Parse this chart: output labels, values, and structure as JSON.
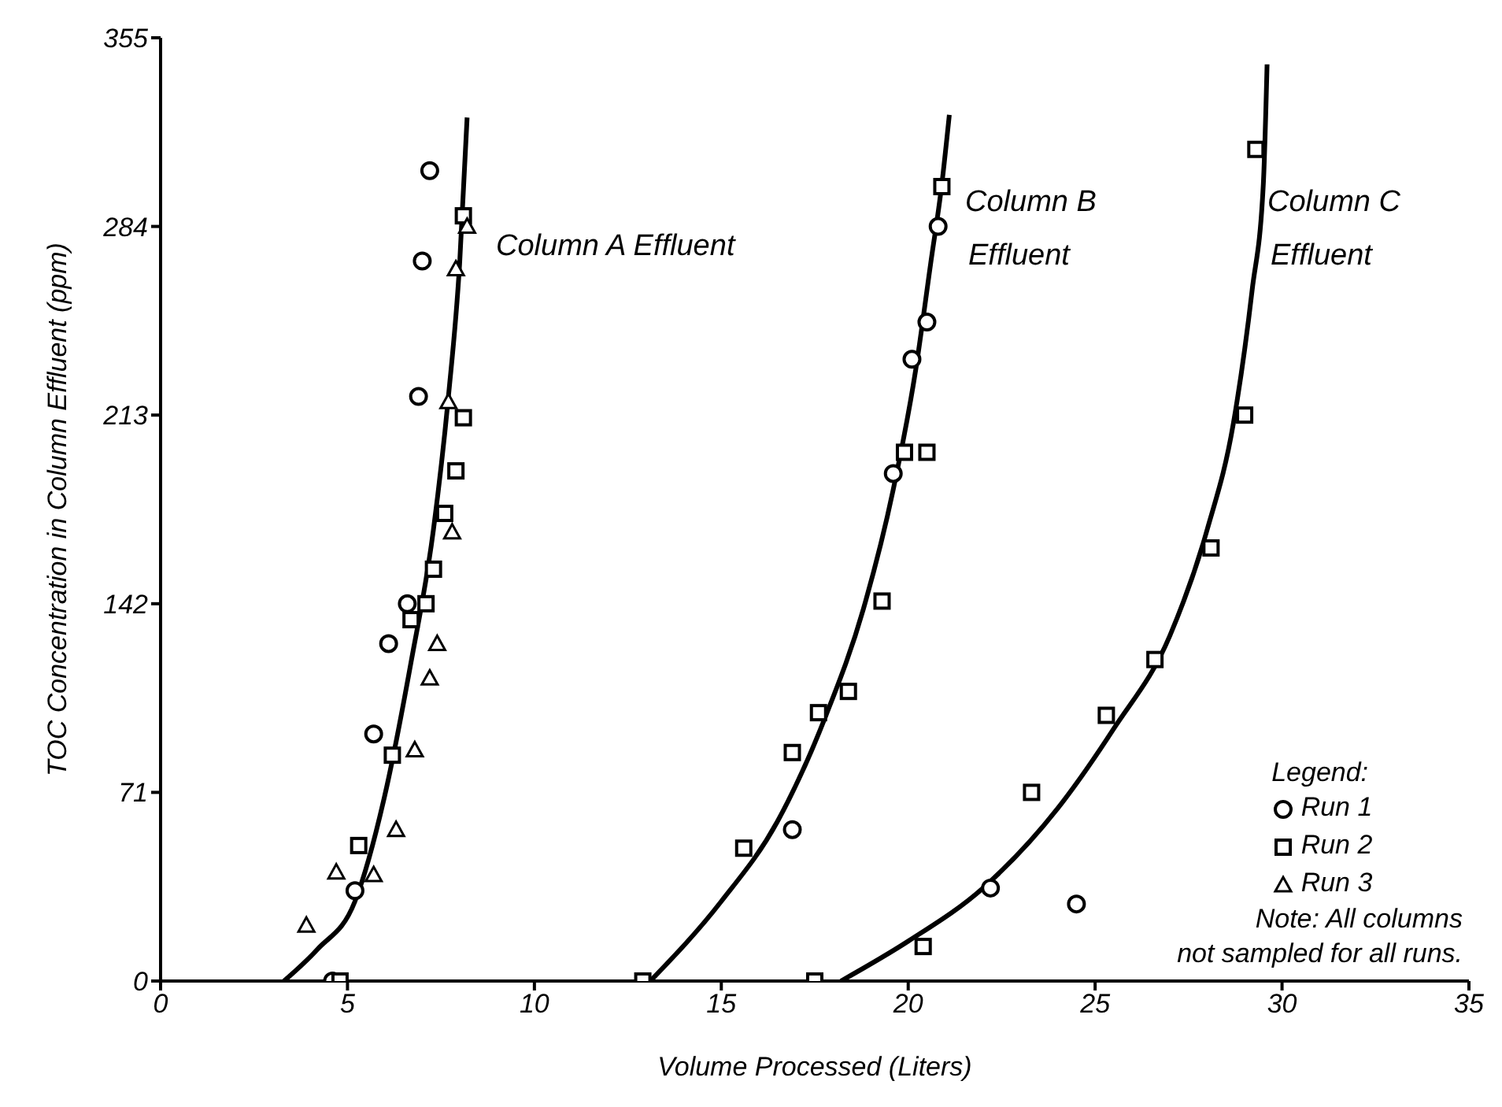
{
  "chart_data": {
    "type": "scatter",
    "xlabel": "Volume Processed (Liters)",
    "ylabel": "TOC Concentration in Column Effluent (ppm)",
    "legend_title": "Legend:",
    "legend": "bottom right",
    "grid": false,
    "xlim": [
      0,
      35
    ],
    "xticks": [
      0,
      5,
      10,
      15,
      20,
      25,
      30,
      35
    ],
    "ylim": [
      0,
      355
    ],
    "yticks": [
      0,
      71,
      142,
      213,
      284,
      355
    ],
    "series": [
      {
        "name": "Run 1",
        "marker": "circle",
        "color": "#000000",
        "x": [
          7.2,
          7.0,
          6.9,
          6.6,
          6.1,
          5.7,
          5.2,
          4.6,
          20.8,
          20.5,
          20.1,
          19.6,
          16.9,
          22.2,
          24.5
        ],
        "values": [
          305,
          271,
          220,
          142,
          127,
          93,
          34,
          0,
          284,
          248,
          234,
          191,
          57,
          35,
          29
        ]
      },
      {
        "name": "Run 2",
        "marker": "square",
        "color": "#000000",
        "x": [
          8.1,
          8.1,
          7.9,
          7.6,
          7.3,
          7.1,
          6.7,
          6.2,
          5.3,
          4.8,
          20.9,
          19.9,
          20.5,
          19.3,
          18.4,
          17.6,
          16.9,
          15.6,
          12.9,
          29.3,
          29.0,
          28.1,
          26.6,
          25.3,
          23.3,
          20.4,
          17.5
        ],
        "values": [
          288,
          212,
          192,
          176,
          155,
          142,
          136,
          85,
          51,
          0,
          299,
          199,
          199,
          143,
          109,
          101,
          86,
          50,
          0,
          313,
          213,
          163,
          121,
          100,
          71,
          13,
          0
        ]
      },
      {
        "name": "Run 3",
        "marker": "triangle",
        "color": "#000000",
        "x": [
          8.2,
          7.9,
          7.7,
          7.8,
          7.4,
          7.2,
          6.8,
          6.3,
          5.7,
          4.7,
          3.9
        ],
        "values": [
          284,
          268,
          218,
          169,
          127,
          114,
          87,
          57,
          40,
          41,
          21
        ]
      },
      {
        "type": "line",
        "color": "#000000",
        "marker": "none",
        "x": [
          3.3,
          4.2,
          5.2,
          6.0,
          6.7,
          7.3,
          7.7,
          8.0,
          8.2
        ],
        "values": [
          0,
          12,
          30,
          70,
          120,
          170,
          220,
          270,
          325
        ]
      },
      {
        "type": "line",
        "color": "#000000",
        "marker": "none",
        "x": [
          13.1,
          15.0,
          16.5,
          17.8,
          18.8,
          19.6,
          20.2,
          20.6,
          20.9,
          21.1
        ],
        "values": [
          0,
          30,
          60,
          100,
          140,
          185,
          230,
          270,
          300,
          326
        ]
      },
      {
        "type": "line",
        "color": "#000000",
        "marker": "none",
        "x": [
          18.2,
          20.0,
          22.0,
          24.0,
          25.5,
          27.0,
          28.0,
          28.7,
          29.2,
          29.5,
          29.6
        ],
        "values": [
          0,
          15,
          35,
          65,
          95,
          130,
          170,
          210,
          260,
          300,
          345
        ]
      }
    ],
    "annotations": [
      "Column A Effluent",
      "Column B\nEffluent",
      "Column C\nEffluent",
      "Note: All columns\nnot sampled for all runs."
    ]
  }
}
